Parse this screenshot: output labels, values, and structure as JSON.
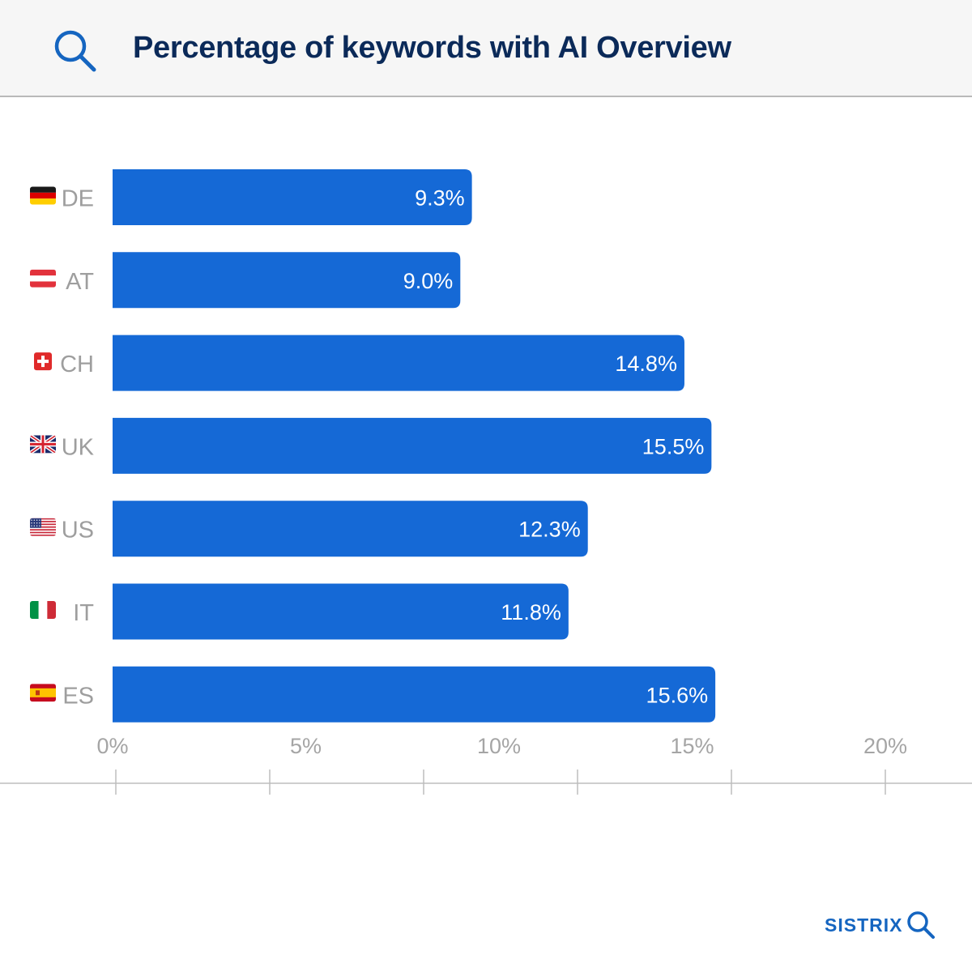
{
  "header": {
    "title": "Percentage of keywords with AI Overview",
    "icon": "search-icon"
  },
  "brand": {
    "name": "SISTRIX",
    "icon": "magnifier-icon"
  },
  "colors": {
    "bar": "#1569d6",
    "title": "#0b2a59",
    "axis_label": "#9e9e9e",
    "brand": "#1565c0"
  },
  "chart_data": {
    "type": "bar",
    "orientation": "horizontal",
    "title": "Percentage of keywords with AI Overview",
    "categories": [
      "DE",
      "AT",
      "CH",
      "UK",
      "US",
      "IT",
      "ES"
    ],
    "values": [
      9.3,
      9.0,
      14.8,
      15.5,
      12.3,
      11.8,
      15.6
    ],
    "data_labels": [
      "9.3%",
      "9.0%",
      "14.8%",
      "15.5%",
      "12.3%",
      "11.8%",
      "15.6%"
    ],
    "flags": [
      "flag-germany",
      "flag-austria",
      "flag-switzerland",
      "flag-united-kingdom",
      "flag-united-states",
      "flag-italy",
      "flag-spain"
    ],
    "x_ticks": [
      0,
      5,
      10,
      15,
      20
    ],
    "x_tick_labels": [
      "0%",
      "5%",
      "10%",
      "15%",
      "20%"
    ],
    "xlim": [
      0,
      20
    ],
    "xlabel": "",
    "ylabel": "",
    "grid": false,
    "legend": "none"
  }
}
